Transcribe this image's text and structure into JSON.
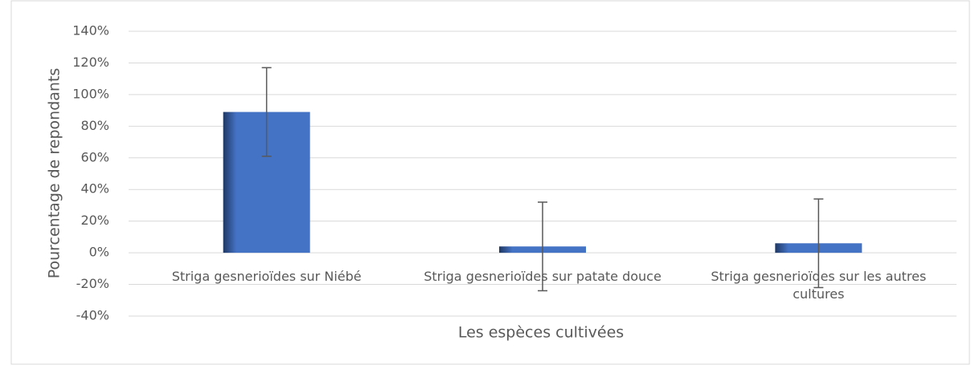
{
  "chart_data": {
    "type": "bar",
    "y_label": "Pourcentage de repondants",
    "x_label": "Les espèces cultivées",
    "categories": [
      "Striga gesnerioïdes sur Niébé",
      "Striga gesnerioïdes sur patate douce",
      "Striga gesnerioïdes sur les autres cultures"
    ],
    "values": [
      89,
      4,
      6
    ],
    "errors": [
      28,
      28,
      28
    ],
    "color": "#4472c4",
    "ylim": [
      -40,
      140
    ],
    "yticks": [
      {
        "value": -40,
        "label": "-40%"
      },
      {
        "value": -20,
        "label": "-20%"
      },
      {
        "value": 0,
        "label": "0%"
      },
      {
        "value": 20,
        "label": "20%"
      },
      {
        "value": 40,
        "label": "40%"
      },
      {
        "value": 60,
        "label": "60%"
      },
      {
        "value": 80,
        "label": "80%"
      },
      {
        "value": 100,
        "label": "100%"
      },
      {
        "value": 120,
        "label": "120%"
      },
      {
        "value": 140,
        "label": "140%"
      }
    ],
    "grid": true
  }
}
